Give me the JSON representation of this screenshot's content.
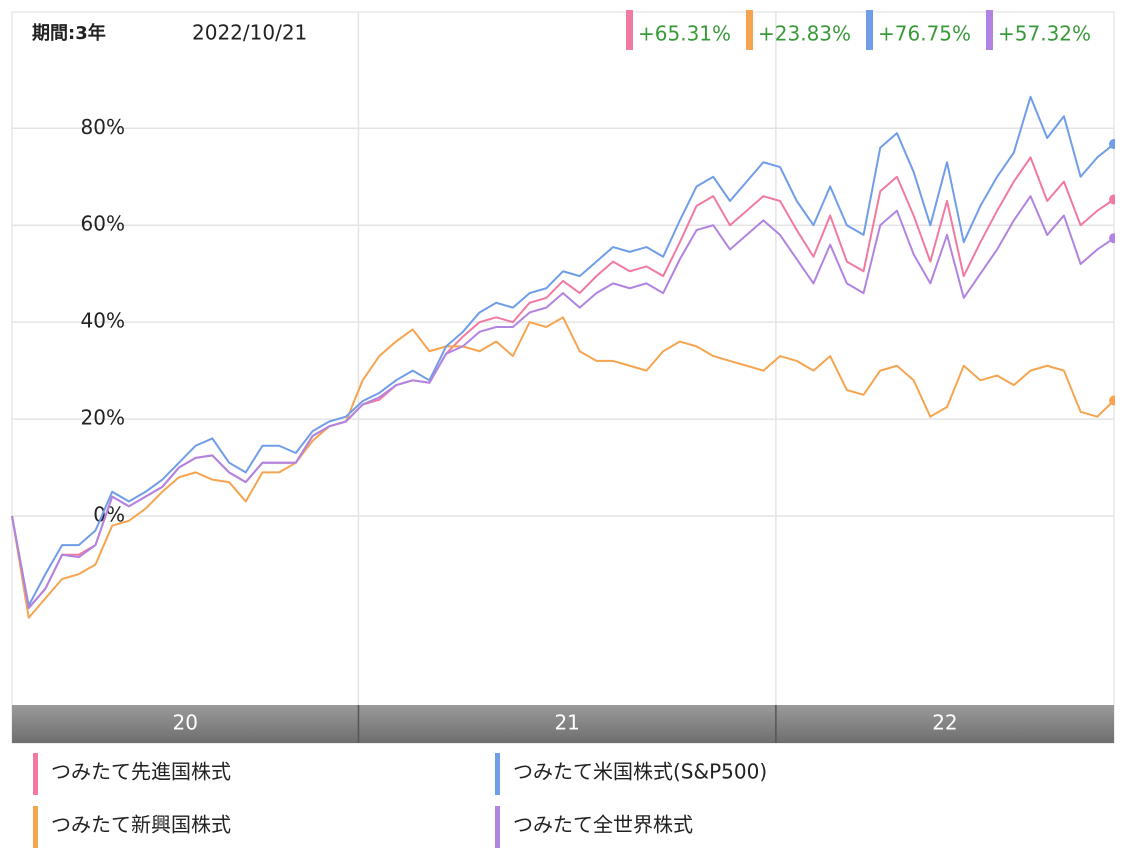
{
  "chart_data": {
    "type": "line",
    "period_label": "期間:3年",
    "date": "2022/10/21",
    "categories": [
      "20",
      "21",
      "22"
    ],
    "xlim": [
      20.17,
      22.81
    ],
    "xticks": [
      21,
      22
    ],
    "ylim": [
      -39,
      104
    ],
    "yticks": [
      {
        "value": 0,
        "label": "0%"
      },
      {
        "value": 20,
        "label": "20%"
      },
      {
        "value": 40,
        "label": "40%"
      },
      {
        "value": 60,
        "label": "60%"
      },
      {
        "value": 80,
        "label": "80%"
      }
    ],
    "grid": true,
    "x": [
      20.17,
      20.21,
      20.25,
      20.29,
      20.33,
      20.37,
      20.41,
      20.45,
      20.49,
      20.53,
      20.57,
      20.61,
      20.65,
      20.69,
      20.73,
      20.77,
      20.81,
      20.85,
      20.89,
      20.93,
      20.97,
      21.01,
      21.05,
      21.09,
      21.13,
      21.17,
      21.21,
      21.25,
      21.29,
      21.33,
      21.37,
      21.41,
      21.45,
      21.49,
      21.53,
      21.57,
      21.61,
      21.65,
      21.69,
      21.73,
      21.77,
      21.81,
      21.85,
      21.89,
      21.93,
      21.97,
      22.01,
      22.05,
      22.09,
      22.13,
      22.17,
      22.21,
      22.25,
      22.29,
      22.33,
      22.37,
      22.41,
      22.45,
      22.49,
      22.53,
      22.57,
      22.61,
      22.65,
      22.69,
      22.73,
      22.77,
      22.81
    ],
    "series": [
      {
        "name": "つみたて先進国株式",
        "color": "#f07aa0",
        "values": [
          0,
          -19,
          -15,
          -8,
          -8,
          -6,
          4,
          2,
          4,
          6,
          10,
          12,
          12.5,
          9,
          7,
          11,
          11,
          11,
          16.5,
          18.5,
          19.5,
          23,
          24,
          27,
          28,
          27.5,
          33.5,
          37,
          40,
          41,
          40,
          44,
          45,
          48.5,
          46,
          49.5,
          52.5,
          50.5,
          51.5,
          49.5,
          56.5,
          64,
          66,
          60,
          63,
          66,
          65,
          59,
          53.5,
          62,
          52.5,
          50.5,
          67,
          70,
          62,
          52.5,
          65,
          49.5,
          56.5,
          63,
          69,
          74,
          65,
          69,
          60,
          63,
          65.31
        ],
        "value_labels": [
          null,
          null,
          null,
          null,
          null,
          null,
          null,
          null,
          null,
          null,
          null,
          null,
          null,
          null,
          null,
          null,
          null,
          null,
          null,
          null,
          null,
          null,
          null,
          null,
          null,
          null,
          null,
          null,
          null,
          null,
          null,
          null,
          null,
          null,
          null,
          null,
          null,
          null,
          null,
          null,
          null,
          null,
          null,
          null,
          null,
          null,
          null,
          null,
          null,
          null,
          null,
          null,
          null,
          null,
          null,
          null,
          null,
          null,
          null,
          null,
          null,
          null,
          null,
          null,
          null,
          null,
          "+65.31%"
        ]
      },
      {
        "name": "つみたて新興国株式",
        "color": "#f5a550",
        "values": [
          0,
          -21,
          -17,
          -13,
          -12,
          -10,
          -2,
          -1,
          1.5,
          5,
          8,
          9,
          7.5,
          7,
          3,
          9,
          9,
          11,
          15.5,
          18.5,
          19.5,
          28,
          33,
          36,
          38.5,
          34,
          35,
          35,
          34,
          36,
          33,
          40,
          39,
          41,
          34,
          32,
          32,
          31,
          30,
          34,
          36,
          35,
          33,
          32,
          31,
          30,
          33,
          32,
          30,
          33,
          26,
          25,
          30,
          31,
          28,
          20.5,
          22.5,
          31,
          28,
          29,
          27,
          30,
          31,
          30,
          21.5,
          20.5,
          23.83
        ],
        "value_labels": [
          null,
          null,
          null,
          null,
          null,
          null,
          null,
          null,
          null,
          null,
          null,
          null,
          null,
          null,
          null,
          null,
          null,
          null,
          null,
          null,
          null,
          null,
          null,
          null,
          null,
          null,
          null,
          null,
          null,
          null,
          null,
          null,
          null,
          null,
          null,
          null,
          null,
          null,
          null,
          null,
          null,
          null,
          null,
          null,
          null,
          null,
          null,
          null,
          null,
          null,
          null,
          null,
          null,
          null,
          null,
          null,
          null,
          null,
          null,
          null,
          null,
          null,
          null,
          null,
          null,
          null,
          "+23.83%"
        ]
      },
      {
        "name": "つみたて米国株式(S&P500)",
        "color": "#6f9de8",
        "values": [
          0,
          -18.5,
          -12,
          -6,
          -6,
          -3,
          5,
          3,
          5,
          7.5,
          11,
          14.5,
          16,
          11,
          9,
          14.5,
          14.5,
          13,
          17.5,
          19.5,
          20.5,
          23.7,
          25.4,
          28,
          30,
          28,
          35,
          38,
          42,
          44,
          43,
          46,
          47,
          50.5,
          49.5,
          52.5,
          55.5,
          54.5,
          55.5,
          53.5,
          61,
          68,
          70,
          65,
          69,
          73,
          72,
          65,
          60,
          68,
          60,
          58,
          76,
          79,
          71,
          60,
          73,
          56.5,
          64,
          70,
          75,
          86.5,
          78,
          82.5,
          70,
          74,
          76.75
        ],
        "value_labels": [
          null,
          null,
          null,
          null,
          null,
          null,
          null,
          null,
          null,
          null,
          null,
          null,
          null,
          null,
          null,
          null,
          null,
          null,
          null,
          null,
          null,
          null,
          null,
          null,
          null,
          null,
          null,
          null,
          null,
          null,
          null,
          null,
          null,
          null,
          null,
          null,
          null,
          null,
          null,
          null,
          null,
          null,
          null,
          null,
          null,
          null,
          null,
          null,
          null,
          null,
          null,
          null,
          null,
          null,
          null,
          null,
          null,
          null,
          null,
          null,
          null,
          null,
          null,
          null,
          null,
          null,
          "+76.75%"
        ]
      },
      {
        "name": "つみたて全世界株式",
        "color": "#b084e0",
        "values": [
          0,
          -19,
          -15,
          -8,
          -8.5,
          -6,
          4,
          2,
          4,
          6,
          10,
          12,
          12.5,
          9,
          7,
          11,
          11,
          11,
          16.5,
          18.5,
          19.5,
          23,
          24.5,
          27,
          28,
          27.5,
          33.5,
          35,
          38,
          39,
          39,
          42,
          43,
          46,
          43,
          46,
          48,
          47,
          48,
          46,
          53,
          59,
          60,
          55,
          58,
          61,
          58,
          53,
          48,
          56,
          48,
          46,
          60,
          63,
          54,
          48,
          58,
          45,
          50,
          55,
          61,
          66,
          58,
          62,
          52,
          55,
          57.32
        ],
        "value_labels": [
          null,
          null,
          null,
          null,
          null,
          null,
          null,
          null,
          null,
          null,
          null,
          null,
          null,
          null,
          null,
          null,
          null,
          null,
          null,
          null,
          null,
          null,
          null,
          null,
          null,
          null,
          null,
          null,
          null,
          null,
          null,
          null,
          null,
          null,
          null,
          null,
          null,
          null,
          null,
          null,
          null,
          null,
          null,
          null,
          null,
          null,
          null,
          null,
          null,
          null,
          null,
          null,
          null,
          null,
          null,
          null,
          null,
          null,
          null,
          null,
          null,
          null,
          null,
          null,
          null,
          null,
          "+57.32%"
        ]
      }
    ],
    "value_label_color": "#3a9a3a"
  }
}
